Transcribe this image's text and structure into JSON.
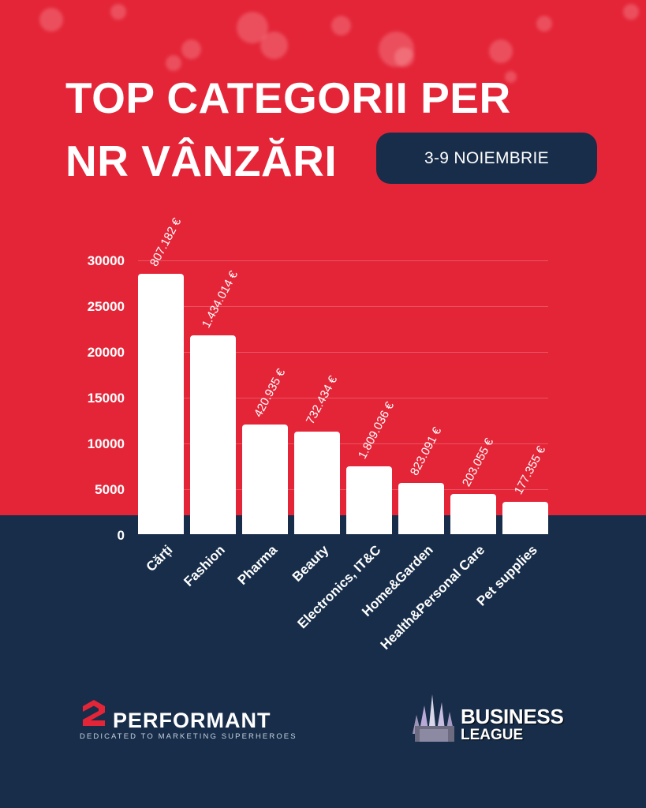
{
  "header": {
    "title_line1": "TOP CATEGORII PER",
    "title_line2": "NR VÂNZĂRI",
    "date_range": "3-9 NOIEMBRIE"
  },
  "colors": {
    "primary_red": "#e42538",
    "navy": "#172d4a",
    "bar": "#ffffff"
  },
  "chart_data": {
    "type": "bar",
    "title": "TOP CATEGORII PER NR VÂNZĂRI",
    "subtitle": "3-9 NOIEMBRIE",
    "xlabel": "",
    "ylabel": "",
    "ylim": [
      0,
      30000
    ],
    "yticks": [
      "0",
      "5000",
      "10000",
      "15000",
      "20000",
      "25000",
      "30000"
    ],
    "grid": true,
    "legend": null,
    "categories": [
      "Cărți",
      "Fashion",
      "Pharma",
      "Beauty",
      "Electronics, IT&C",
      "Home&Garden",
      "Health&Personal Care",
      "Pet supplies"
    ],
    "values": [
      28500,
      21800,
      12100,
      11300,
      7500,
      5700,
      4500,
      3600
    ],
    "annotations": [
      "807.182 €",
      "1.434.014 €",
      "420.935 €",
      "732.434 €",
      "1.809.036 €",
      "823.091 €",
      "203.055 €",
      "177.355 €"
    ]
  },
  "footer": {
    "left_logo": {
      "name": "PERFORMANT",
      "mark": "2",
      "tagline": "DEDICATED TO MARKETING SUPERHEROES"
    },
    "right_logo": {
      "line1": "BUSINESS",
      "line2": "LEAGUE"
    }
  }
}
